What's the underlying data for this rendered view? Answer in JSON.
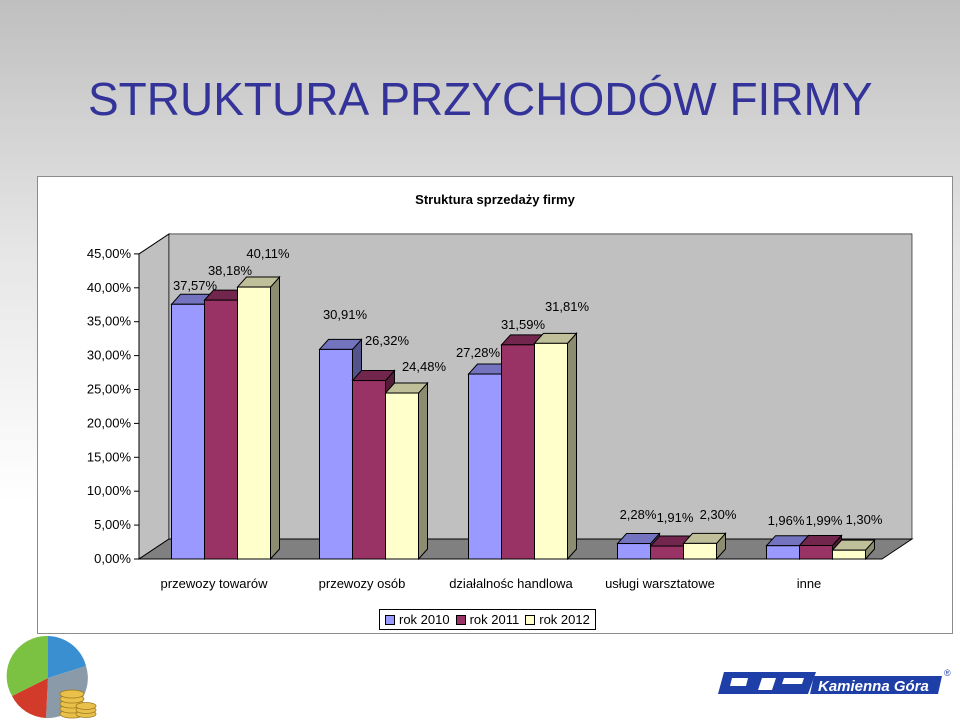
{
  "slide": {
    "title": "STRUKTURA PRZYCHODÓW FIRMY"
  },
  "chart_data": {
    "type": "bar",
    "title": "Struktura sprzedaży firmy",
    "categories": [
      "przewozy towarów",
      "przewozy osób",
      "działalnośc handlowa",
      "usługi warsztatowe",
      "inne"
    ],
    "series": [
      {
        "name": "rok 2010",
        "values": [
          37.57,
          30.91,
          27.28,
          2.28,
          1.96
        ],
        "labels": [
          "37,57%",
          "30,91%",
          "27,28%",
          "2,28%",
          "1,96%"
        ]
      },
      {
        "name": "rok 2011",
        "values": [
          38.18,
          26.32,
          31.59,
          1.91,
          1.99
        ],
        "labels": [
          "38,18%",
          "26,32%",
          "31,59%",
          "1,91%",
          "1,99%"
        ]
      },
      {
        "name": "rok 2012",
        "values": [
          40.11,
          24.48,
          31.81,
          2.3,
          1.3
        ],
        "labels": [
          "40,11%",
          "24,48%",
          "31,81%",
          "2,30%",
          "1,30%"
        ]
      }
    ],
    "y_ticks": [
      "0,00%",
      "5,00%",
      "10,00%",
      "15,00%",
      "20,00%",
      "25,00%",
      "30,00%",
      "35,00%",
      "40,00%",
      "45,00%"
    ],
    "ylim": [
      0,
      45
    ],
    "colors": {
      "rok 2010": "#9999ff",
      "rok 2011": "#993366",
      "rok 2012": "#ffffcc"
    },
    "legend_position": "bottom",
    "grid": false,
    "style": "3d-clustered-column"
  },
  "logo": {
    "brand_text": "Kamienna Góra",
    "registered_mark": "®"
  }
}
